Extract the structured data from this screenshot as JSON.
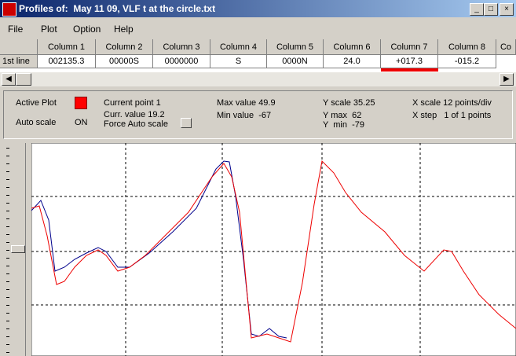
{
  "window": {
    "title": "Profiles of:  May 11 09, VLF t at the circle.txt"
  },
  "menu": [
    "File",
    "Plot",
    "Option",
    "Help"
  ],
  "table": {
    "headers": [
      "Column 1",
      "Column 2",
      "Column 3",
      "Column 4",
      "Column 5",
      "Column 6",
      "Column 7",
      "Column 8",
      "Co"
    ],
    "row_label": "1st line",
    "cells": [
      "002135.3",
      "00000S",
      "0000000",
      "S",
      "0000N",
      "24.0",
      "+017.3",
      "-015.2"
    ]
  },
  "info": {
    "active_plot": "Active Plot",
    "auto_scale": "Auto scale",
    "auto_scale_state": "ON",
    "current_point": "Current point 1",
    "current_value": "Curr. value 19.2",
    "force_auto_scale": "Force Auto scale",
    "max_value": "Max value 49.9",
    "min_value": "Min value  -67",
    "y_scale": "Y scale 35.25",
    "y_max": "Y max  62",
    "y_min": "Y  min  -79",
    "x_scale": "X scale 12 points/div",
    "x_step": "X step   1 of 1 points"
  }
}
